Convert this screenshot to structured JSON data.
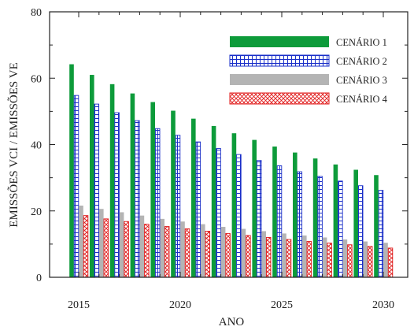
{
  "chart_data": {
    "type": "bar",
    "xlabel": "ANO",
    "ylabel": "EMISSÕES VCI / EMISSÕES VE",
    "ylim": [
      0,
      80
    ],
    "yticks": [
      0,
      20,
      40,
      60,
      80
    ],
    "grid": false,
    "legend_position": "top-right",
    "categories": [
      2015,
      2016,
      2017,
      2018,
      2019,
      2020,
      2021,
      2022,
      2023,
      2024,
      2025,
      2026,
      2027,
      2028,
      2029,
      2030
    ],
    "xtick_labels": [
      "2015",
      "2020",
      "2025",
      "2030"
    ],
    "series": [
      {
        "name": "CENÁRIO 1",
        "style": "solid",
        "color": "#0d9b3a",
        "values": [
          64.2,
          61.0,
          58.2,
          55.4,
          52.8,
          50.2,
          47.8,
          45.6,
          43.4,
          41.4,
          39.4,
          37.6,
          35.8,
          34.0,
          32.4,
          30.8
        ]
      },
      {
        "name": "CENÁRIO 2",
        "style": "grid-hatch",
        "color": "#1a2fc8",
        "values": [
          54.8,
          52.2,
          49.6,
          47.2,
          44.8,
          42.8,
          40.8,
          38.8,
          37.0,
          35.2,
          33.6,
          31.8,
          30.4,
          29.0,
          27.6,
          26.2
        ]
      },
      {
        "name": "CENÁRIO 3",
        "style": "solid",
        "color": "#b4b4b4",
        "values": [
          21.6,
          20.6,
          19.6,
          18.6,
          17.6,
          16.8,
          16.0,
          15.2,
          14.6,
          13.9,
          13.2,
          12.6,
          12.0,
          11.4,
          10.8,
          10.4
        ]
      },
      {
        "name": "CENÁRIO 4",
        "style": "cross-hatch",
        "color": "#e01b1b",
        "values": [
          18.6,
          17.6,
          16.8,
          16.0,
          15.3,
          14.6,
          13.9,
          13.2,
          12.6,
          12.0,
          11.4,
          10.8,
          10.3,
          9.8,
          9.3,
          8.8
        ]
      }
    ]
  }
}
